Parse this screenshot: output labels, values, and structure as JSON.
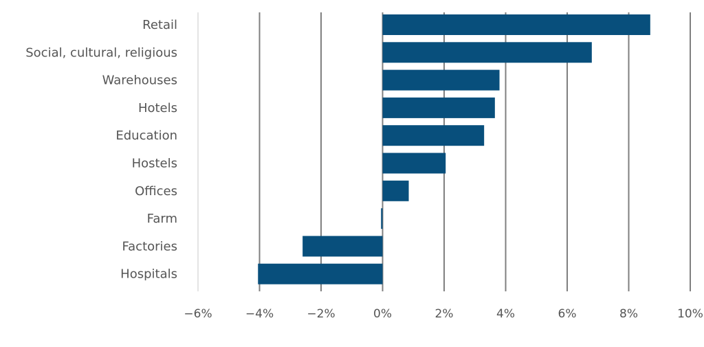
{
  "chart_data": {
    "type": "bar",
    "orientation": "horizontal",
    "categories": [
      "Retail",
      "Social, cultural, religious",
      "Warehouses",
      "Hotels",
      "Education",
      "Hostels",
      "Offices",
      "Farm",
      "Factories",
      "Hospitals"
    ],
    "values": [
      8.7,
      6.8,
      3.8,
      3.65,
      3.3,
      2.05,
      0.85,
      -0.05,
      -2.6,
      -4.05
    ],
    "xlim": [
      -6,
      10
    ],
    "xticks": [
      -6,
      -4,
      -2,
      0,
      2,
      4,
      6,
      8,
      10
    ],
    "xtick_labels": [
      "−6%",
      "−4%",
      "−2%",
      "0%",
      "2%",
      "4%",
      "6%",
      "8%",
      "10%"
    ],
    "grid": "vertical",
    "title": "",
    "xlabel": "",
    "ylabel": "",
    "colors": {
      "bar": "#084f7c",
      "grid": "#7f7f7f",
      "text": "#555555"
    }
  }
}
